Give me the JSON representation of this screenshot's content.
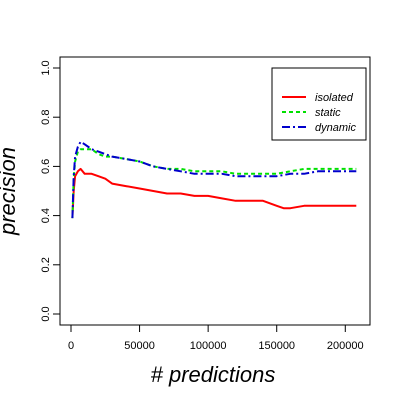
{
  "chart_data": {
    "type": "line",
    "title": "",
    "xlabel": "# predictions",
    "ylabel": "precision",
    "xlim": [
      0,
      210000
    ],
    "ylim": [
      0.0,
      1.0
    ],
    "xticks": [
      0,
      50000,
      100000,
      150000,
      200000
    ],
    "xtick_labels": [
      "0",
      "50000",
      "100000",
      "150000",
      "200000"
    ],
    "yticks": [
      0.0,
      0.2,
      0.4,
      0.6,
      0.8,
      1.0
    ],
    "ytick_labels": [
      "0.0",
      "0.2",
      "0.4",
      "0.6",
      "0.8",
      "1.0"
    ],
    "grid": false,
    "legend_position": "top-right",
    "series": [
      {
        "name": "isolated",
        "color": "#ff0000",
        "dash": "solid",
        "x": [
          1000,
          2000,
          3000,
          5000,
          7000,
          10000,
          15000,
          20000,
          25000,
          30000,
          40000,
          50000,
          60000,
          70000,
          80000,
          90000,
          100000,
          110000,
          120000,
          130000,
          140000,
          150000,
          155000,
          160000,
          170000,
          180000,
          190000,
          200000,
          208000
        ],
        "y": [
          0.39,
          0.5,
          0.56,
          0.58,
          0.59,
          0.57,
          0.57,
          0.56,
          0.55,
          0.53,
          0.52,
          0.51,
          0.5,
          0.49,
          0.49,
          0.48,
          0.48,
          0.47,
          0.46,
          0.46,
          0.46,
          0.44,
          0.43,
          0.43,
          0.44,
          0.44,
          0.44,
          0.44,
          0.44
        ]
      },
      {
        "name": "static",
        "color": "#00e000",
        "dash": "dashed",
        "x": [
          1000,
          2000,
          3000,
          5000,
          7000,
          10000,
          15000,
          20000,
          25000,
          30000,
          40000,
          50000,
          60000,
          70000,
          80000,
          90000,
          100000,
          110000,
          120000,
          130000,
          140000,
          150000,
          160000,
          170000,
          180000,
          190000,
          200000,
          208000
        ],
        "y": [
          0.39,
          0.55,
          0.62,
          0.66,
          0.67,
          0.67,
          0.67,
          0.65,
          0.64,
          0.64,
          0.63,
          0.62,
          0.6,
          0.59,
          0.59,
          0.58,
          0.58,
          0.58,
          0.57,
          0.57,
          0.57,
          0.57,
          0.58,
          0.59,
          0.59,
          0.59,
          0.59,
          0.59
        ]
      },
      {
        "name": "dynamic",
        "color": "#0000cc",
        "dash": "dashdot",
        "x": [
          1000,
          2000,
          3000,
          5000,
          7000,
          10000,
          15000,
          20000,
          25000,
          30000,
          40000,
          50000,
          60000,
          70000,
          80000,
          90000,
          100000,
          110000,
          120000,
          130000,
          140000,
          150000,
          160000,
          170000,
          180000,
          190000,
          200000,
          208000
        ],
        "y": [
          0.39,
          0.56,
          0.64,
          0.68,
          0.7,
          0.69,
          0.67,
          0.66,
          0.65,
          0.64,
          0.63,
          0.62,
          0.6,
          0.59,
          0.58,
          0.57,
          0.57,
          0.57,
          0.56,
          0.56,
          0.56,
          0.56,
          0.57,
          0.57,
          0.58,
          0.58,
          0.58,
          0.58
        ]
      }
    ]
  }
}
